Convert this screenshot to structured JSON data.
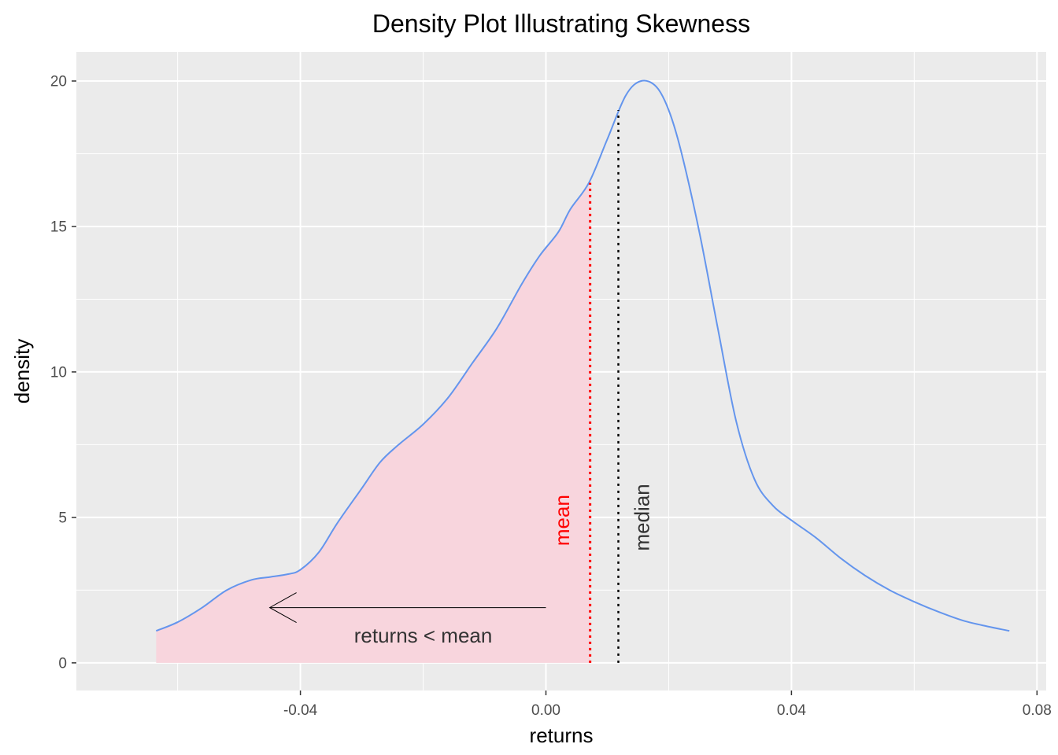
{
  "chart_data": {
    "type": "area",
    "title": "Density Plot Illustrating Skewness",
    "xlabel": "returns",
    "ylabel": "density",
    "xlim": [
      -0.0765,
      0.0815
    ],
    "ylim": [
      -0.95,
      21.0
    ],
    "x_ticks": [
      -0.04,
      0.0,
      0.04,
      0.08
    ],
    "x_tick_labels": [
      "-0.04",
      "0.00",
      "0.04",
      "0.08"
    ],
    "y_ticks": [
      0,
      5,
      10,
      15,
      20
    ],
    "y_tick_labels": [
      "0",
      "5",
      "10",
      "15",
      "20"
    ],
    "grid": true,
    "legend": "none",
    "series": [
      {
        "x": [
          -0.0635,
          -0.06,
          -0.056,
          -0.052,
          -0.048,
          -0.045,
          -0.042,
          -0.04,
          -0.037,
          -0.034,
          -0.03,
          -0.027,
          -0.024,
          -0.02,
          -0.016,
          -0.012,
          -0.008,
          -0.004,
          -0.001,
          0.002,
          0.004,
          0.007,
          0.01,
          0.013,
          0.0155,
          0.018,
          0.02,
          0.022,
          0.025,
          0.028,
          0.031,
          0.034,
          0.037,
          0.04,
          0.044,
          0.048,
          0.052,
          0.056,
          0.06,
          0.064,
          0.068,
          0.072,
          0.0755
        ],
        "y": [
          1.1,
          1.4,
          1.9,
          2.5,
          2.85,
          2.95,
          3.05,
          3.2,
          3.8,
          4.8,
          6.0,
          6.9,
          7.5,
          8.2,
          9.1,
          10.3,
          11.5,
          13.0,
          14.0,
          14.8,
          15.6,
          16.5,
          18.0,
          19.5,
          20.0,
          19.8,
          19.0,
          17.6,
          14.8,
          11.5,
          8.3,
          6.3,
          5.4,
          4.9,
          4.3,
          3.6,
          3.0,
          2.5,
          2.1,
          1.75,
          1.45,
          1.25,
          1.1
        ],
        "color": "#6495ED"
      }
    ],
    "shaded_region": {
      "from": -0.0635,
      "to": 0.0072,
      "color": "#F8D5DD"
    },
    "vlines": [
      {
        "label": "mean",
        "x": 0.0072,
        "ymax": 16.5,
        "color": "#FF0000"
      },
      {
        "label": "median",
        "x": 0.0118,
        "ymax": 19.0,
        "color": "#000000"
      }
    ],
    "annotations": [
      {
        "text": "returns < mean",
        "x": -0.02,
        "y": 0.95
      },
      {
        "type": "arrow",
        "x_from": 0.0,
        "x_to": -0.045,
        "y": 1.9
      }
    ]
  }
}
